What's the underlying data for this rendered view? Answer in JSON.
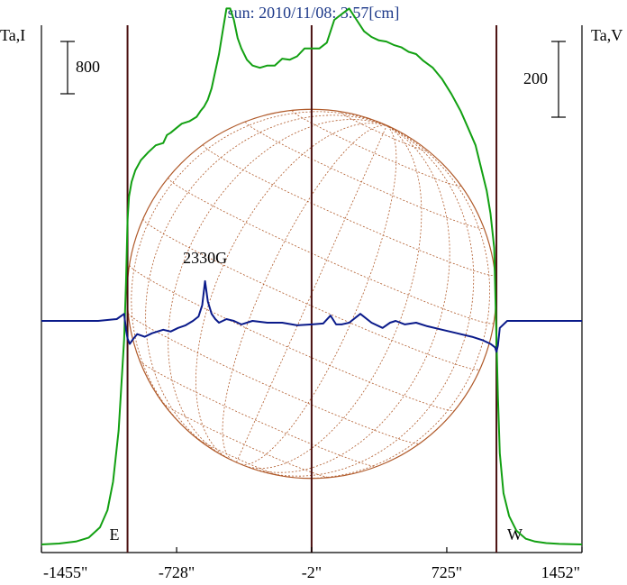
{
  "colors": {
    "background": "#ffffff",
    "frame": "#000000",
    "limb_lines": "#4a1010",
    "disk": "#b05a2a",
    "intensity": "#12a012",
    "polarization": "#0a1a8a",
    "title": "#1e3a8a"
  },
  "chart_data": {
    "type": "line",
    "title": "sun: 2010/11/08: 3.57[cm]",
    "y_left_label": "Ta,I",
    "y_right_label": "Ta,V",
    "x_ticks": [
      {
        "value": -1455,
        "label": "-1455\""
      },
      {
        "value": -728,
        "label": "-728\""
      },
      {
        "value": -2,
        "label": "-2\""
      },
      {
        "value": 725,
        "label": "725\""
      },
      {
        "value": 1452,
        "label": "1452\""
      }
    ],
    "x_range": [
      -1455,
      1452
    ],
    "limb_markers": [
      {
        "value": -992,
        "label": "E"
      },
      {
        "value": 992,
        "label": "W"
      }
    ],
    "center_marker": -2,
    "scale_bars": [
      {
        "axis": "left",
        "value": "800"
      },
      {
        "axis": "right",
        "value": "200"
      }
    ],
    "annotations": [
      {
        "text": "2330G",
        "x": -575
      }
    ],
    "disk_radius_arcsec": 992,
    "series": [
      {
        "key": "I",
        "axis": "left",
        "range": [
          0,
          4300
        ],
        "x": [
          -1455,
          -1360,
          -1270,
          -1200,
          -1140,
          -1100,
          -1070,
          -1040,
          -1010,
          -1000,
          -992,
          -984,
          -970,
          -950,
          -920,
          -880,
          -840,
          -800,
          -780,
          -760,
          -730,
          -700,
          -660,
          -620,
          -600,
          -580,
          -560,
          -540,
          -520,
          -500,
          -480,
          -460,
          -440,
          -420,
          -400,
          -380,
          -350,
          -320,
          -280,
          -240,
          -200,
          -160,
          -120,
          -80,
          -40,
          0,
          40,
          80,
          120,
          160,
          200,
          240,
          280,
          320,
          360,
          400,
          440,
          480,
          520,
          560,
          600,
          650,
          700,
          750,
          800,
          840,
          880,
          910,
          940,
          960,
          980,
          992,
          1000,
          1010,
          1030,
          1060,
          1100,
          1150,
          1200,
          1260,
          1330,
          1400,
          1452
        ],
        "y": [
          0,
          8,
          25,
          60,
          150,
          300,
          550,
          1000,
          1800,
          2300,
          2850,
          3050,
          3180,
          3280,
          3370,
          3440,
          3500,
          3520,
          3590,
          3610,
          3650,
          3690,
          3710,
          3750,
          3800,
          3840,
          3900,
          4000,
          4150,
          4300,
          4500,
          4700,
          4700,
          4600,
          4440,
          4350,
          4250,
          4200,
          4180,
          4200,
          4200,
          4260,
          4250,
          4280,
          4350,
          4350,
          4350,
          4400,
          4600,
          4650,
          4700,
          4600,
          4500,
          4450,
          4420,
          4410,
          4380,
          4360,
          4320,
          4300,
          4240,
          4180,
          4080,
          3950,
          3800,
          3650,
          3500,
          3300,
          3100,
          2900,
          2600,
          1800,
          1300,
          800,
          450,
          250,
          120,
          50,
          25,
          12,
          5,
          2,
          0
        ]
      },
      {
        "key": "V",
        "axis": "right",
        "range": [
          -1000,
          625
        ],
        "x": [
          -1455,
          -1300,
          -1150,
          -1050,
          -1010,
          -1000,
          -992,
          -980,
          -960,
          -940,
          -900,
          -860,
          -800,
          -760,
          -720,
          -680,
          -640,
          -610,
          -590,
          -575,
          -560,
          -540,
          -520,
          -500,
          -460,
          -420,
          -380,
          -320,
          -240,
          -160,
          -80,
          0,
          60,
          100,
          130,
          160,
          200,
          260,
          320,
          380,
          420,
          450,
          500,
          560,
          620,
          700,
          780,
          860,
          920,
          960,
          985,
          992,
          1000,
          1010,
          1050,
          1150,
          1300,
          1452
        ],
        "y": [
          0,
          0,
          0,
          2,
          8,
          -10,
          -20,
          -26,
          -20,
          -15,
          -18,
          -14,
          -10,
          -12,
          -8,
          -5,
          0,
          5,
          18,
          45,
          22,
          8,
          2,
          -2,
          2,
          0,
          -4,
          0,
          -2,
          -2,
          -5,
          -4,
          -3,
          6,
          -4,
          -4,
          -2,
          8,
          -2,
          -8,
          -2,
          0,
          -4,
          -2,
          -6,
          -10,
          -14,
          -18,
          -22,
          -26,
          -30,
          -35,
          -28,
          -8,
          0,
          0,
          0,
          0
        ]
      }
    ]
  }
}
